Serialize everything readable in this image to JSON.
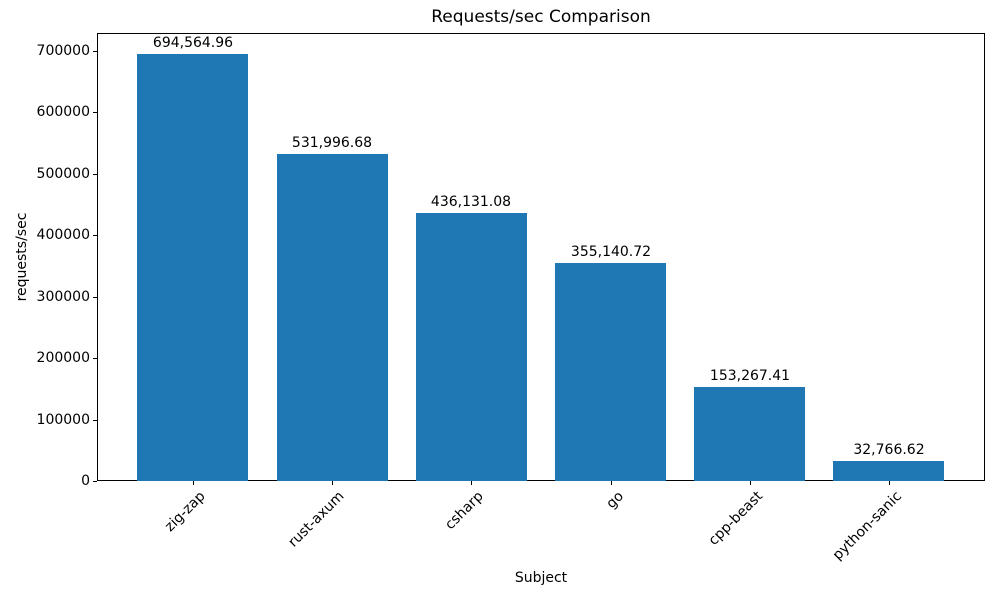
{
  "chart_data": {
    "type": "bar",
    "title": "Requests/sec Comparison",
    "xlabel": "Subject",
    "ylabel": "requests/sec",
    "categories": [
      "zig-zap",
      "rust-axum",
      "csharp",
      "go",
      "cpp-beast",
      "python-sanic"
    ],
    "values": [
      694564.96,
      531996.68,
      436131.08,
      355140.72,
      153267.41,
      32766.62
    ],
    "bar_labels": [
      "694,564.96",
      "531,996.68",
      "436,131.08",
      "355,140.72",
      "153,267.41",
      "32,766.62"
    ],
    "yticks": [
      0,
      100000,
      200000,
      300000,
      400000,
      500000,
      600000,
      700000
    ],
    "ytick_labels": [
      "0",
      "100000",
      "200000",
      "300000",
      "400000",
      "500000",
      "600000",
      "700000"
    ],
    "ylim": [
      0,
      729300
    ],
    "bar_color": "#1f77b4",
    "bar_width_fraction": 0.8,
    "xtick_rotation_deg": 45,
    "grid": false,
    "legend": "none"
  }
}
